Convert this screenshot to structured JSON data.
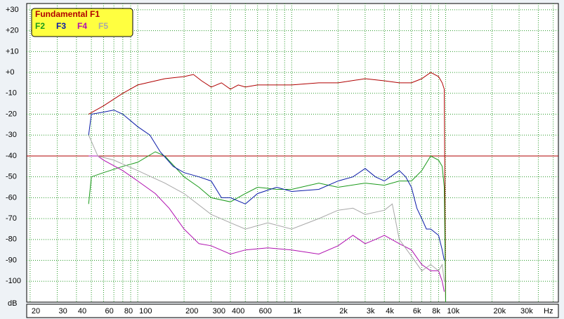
{
  "chart_data": {
    "type": "line",
    "xlabel": "Hz",
    "ylabel": "dB",
    "log_x": true,
    "grid": true,
    "xlim": [
      19,
      54000
    ],
    "ylim": [
      -110,
      33
    ],
    "xticks": [
      20,
      30,
      40,
      60,
      80,
      100,
      200,
      300,
      400,
      600,
      {
        "value": 1000,
        "label": "1k"
      },
      {
        "value": 2000,
        "label": "2k"
      },
      {
        "value": 3000,
        "label": "3k"
      },
      {
        "value": 4000,
        "label": "4k"
      },
      {
        "value": 6000,
        "label": "6k"
      },
      {
        "value": 8000,
        "label": "8k"
      },
      {
        "value": 10000,
        "label": "10k"
      },
      {
        "value": 20000,
        "label": "20k"
      },
      {
        "value": 30000,
        "label": "30k"
      }
    ],
    "x_minor_grid": [
      50,
      70,
      90,
      500,
      700,
      800,
      900,
      5000,
      7000,
      9000,
      40000,
      50000
    ],
    "yticks": [
      {
        "value": 30,
        "label": "+30"
      },
      {
        "value": 20,
        "label": "+20"
      },
      {
        "value": 10,
        "label": "+10"
      },
      {
        "value": 0,
        "label": "+0"
      },
      -10,
      -20,
      -30,
      -40,
      -50,
      -60,
      -70,
      -80,
      -90,
      -100
    ],
    "reference_line": -40,
    "reference_color": "#b00000",
    "legend_color": "#ffff40",
    "legend_position": "upper left",
    "series": [
      {
        "name": "Fundamental F1",
        "color": "#b00000",
        "x": [
          48,
          60,
          80,
          100,
          150,
          200,
          230,
          260,
          300,
          350,
          400,
          450,
          500,
          600,
          800,
          1000,
          1500,
          2000,
          3000,
          4000,
          5000,
          6000,
          7000,
          8000,
          9000,
          9500,
          9800,
          10000
        ],
        "values": [
          -20,
          -16,
          -10,
          -6,
          -3,
          -2,
          -1,
          -4,
          -7,
          -5,
          -8,
          -6,
          -7,
          -6,
          -6,
          -6,
          -5,
          -5,
          -3,
          -4,
          -5,
          -5,
          -3,
          0,
          -2,
          -5,
          -8,
          -110
        ]
      },
      {
        "name": "F2",
        "color": "#1a9a1a",
        "x": [
          48,
          50,
          60,
          80,
          100,
          130,
          150,
          200,
          250,
          300,
          400,
          500,
          600,
          800,
          1000,
          1500,
          2000,
          3000,
          4000,
          5000,
          6000,
          7000,
          8000,
          9000,
          9500,
          9800,
          10000
        ],
        "values": [
          -63,
          -50,
          -48,
          -45,
          -43,
          -38,
          -40,
          -50,
          -55,
          -60,
          -62,
          -58,
          -55,
          -56,
          -56,
          -53,
          -55,
          -53,
          -54,
          -52,
          -52,
          -47,
          -40,
          -42,
          -45,
          -55,
          -110
        ]
      },
      {
        "name": "F3",
        "color": "#0a1aa8",
        "x": [
          48,
          50,
          60,
          70,
          80,
          100,
          120,
          140,
          170,
          200,
          250,
          300,
          350,
          400,
          500,
          600,
          800,
          1000,
          1500,
          2000,
          2500,
          3000,
          3500,
          4000,
          5000,
          5500,
          6000,
          6500,
          7000,
          7500,
          8000,
          9000,
          9500,
          9800
        ],
        "values": [
          -30,
          -20,
          -19,
          -18,
          -20,
          -26,
          -30,
          -38,
          -45,
          -48,
          -50,
          -52,
          -60,
          -60,
          -63,
          -58,
          -55,
          -57,
          -56,
          -52,
          -50,
          -46,
          -50,
          -52,
          -47,
          -50,
          -55,
          -65,
          -70,
          -75,
          -75,
          -78,
          -85,
          -90
        ]
      },
      {
        "name": "F4",
        "color": "#b010b0",
        "x": [
          48,
          55,
          60,
          80,
          100,
          130,
          160,
          200,
          250,
          300,
          400,
          500,
          700,
          1000,
          1500,
          2000,
          2500,
          3000,
          3500,
          4000,
          5000,
          6000,
          7000,
          8000,
          9000,
          9500,
          9800
        ],
        "values": [
          -40,
          -40,
          -42,
          -47,
          -52,
          -58,
          -65,
          -75,
          -82,
          -83,
          -87,
          -85,
          -84,
          -85,
          -87,
          -83,
          -78,
          -82,
          -80,
          -78,
          -82,
          -85,
          -92,
          -95,
          -95,
          -100,
          -105
        ]
      },
      {
        "name": "F5",
        "color": "#a8a8a8",
        "x": [
          48,
          55,
          70,
          100,
          150,
          200,
          300,
          400,
          500,
          700,
          1000,
          1500,
          2000,
          2500,
          3000,
          4000,
          4500,
          5000,
          6000,
          7000,
          8000,
          9000,
          9500,
          9800
        ],
        "values": [
          -30,
          -40,
          -42,
          -47,
          -53,
          -58,
          -68,
          -72,
          -75,
          -72,
          -75,
          -70,
          -66,
          -65,
          -68,
          -66,
          -63,
          -80,
          -88,
          -95,
          -92,
          -95,
          -92,
          -100
        ]
      }
    ]
  }
}
